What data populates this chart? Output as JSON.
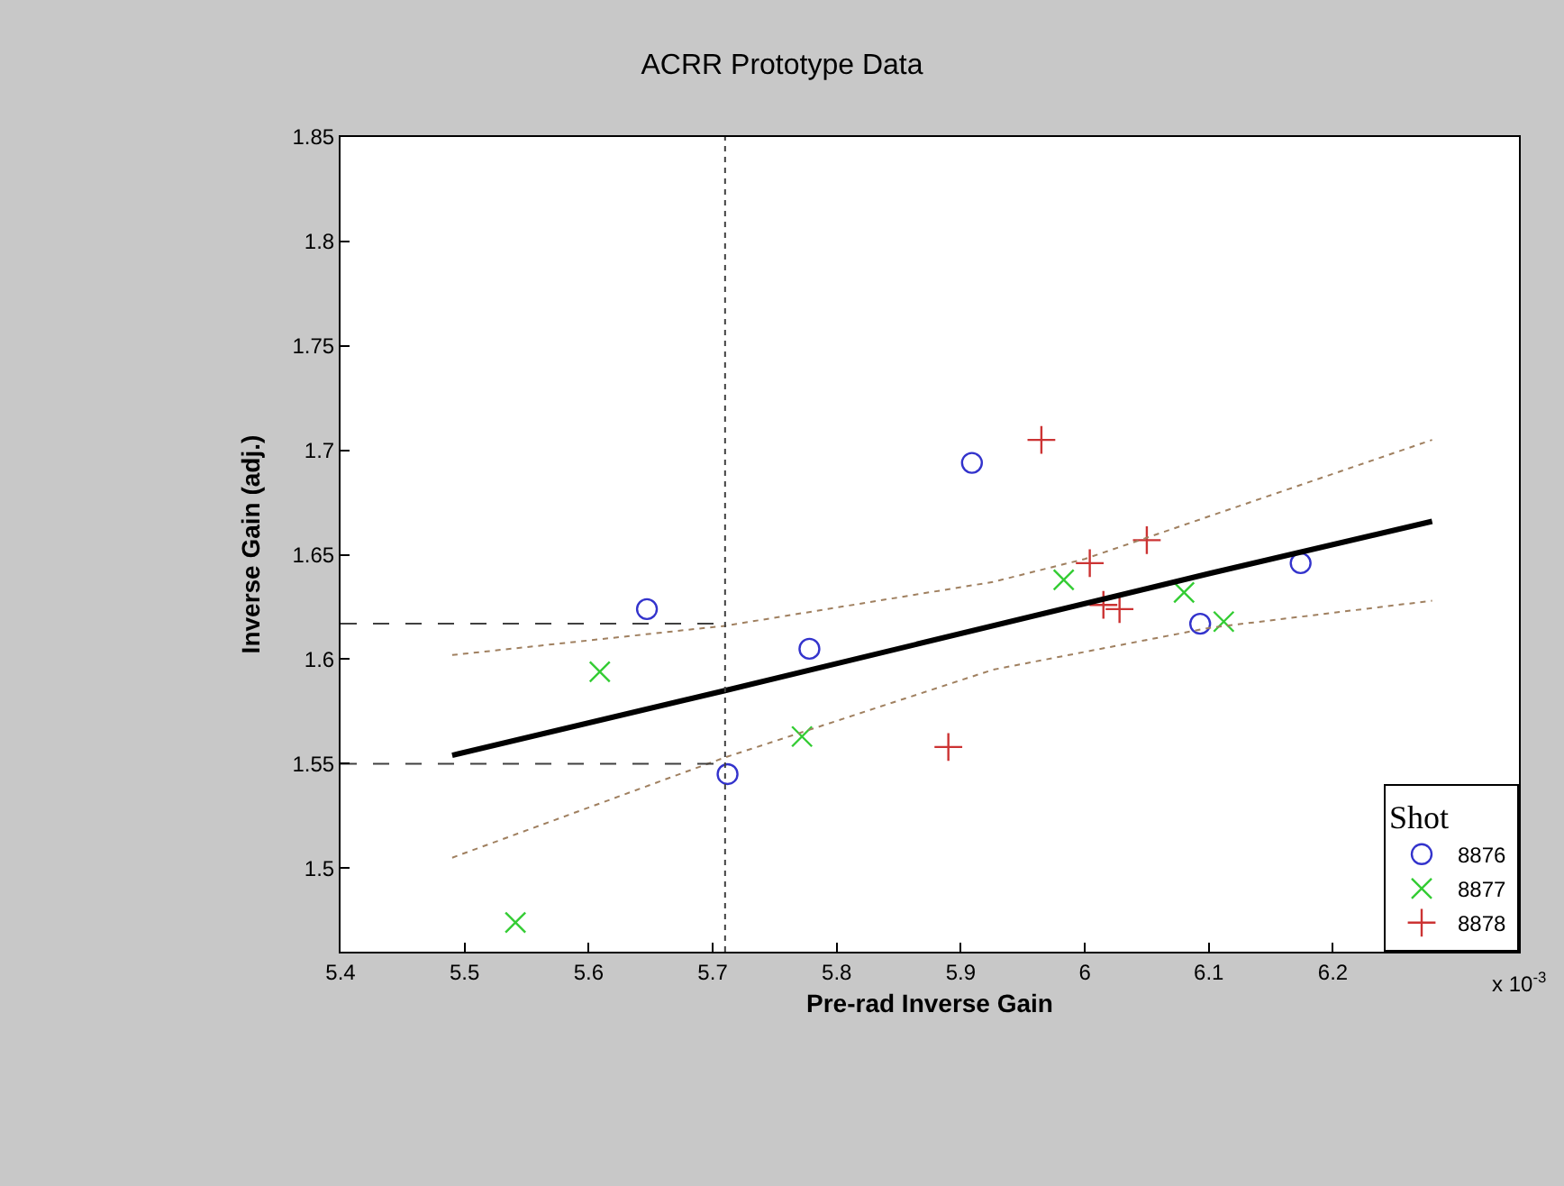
{
  "chart_data": {
    "type": "scatter",
    "title": "ACRR Prototype Data",
    "xlabel": "Pre-rad Inverse Gain",
    "ylabel": "Inverse Gain (adj.)",
    "legend_title": "Shot",
    "legend": "bottom right",
    "xlim": [
      5.4,
      6.35
    ],
    "xticks": [
      5.4,
      5.5,
      5.6,
      5.7,
      5.8,
      5.9,
      6,
      6.1,
      6.2
    ],
    "ylim": [
      1.46,
      1.85
    ],
    "yticks": [
      1.5,
      1.55,
      1.6,
      1.65,
      1.7,
      1.75,
      1.8,
      1.85
    ],
    "annotations": [
      "x 10$^{-3}$"
    ],
    "ref_lines": [
      {
        "axis": "x",
        "value": 5.71,
        "color": "#404040",
        "line_style": "dotted"
      }
    ],
    "series": [
      {
        "name": "8876",
        "marker": "circle",
        "color": "#3333cc",
        "x": [
          5.909,
          5.647,
          5.778,
          5.712,
          6.174,
          6.093
        ],
        "values": [
          1.694,
          1.624,
          1.605,
          1.545,
          1.646,
          1.617
        ]
      },
      {
        "name": "8877",
        "marker": "x",
        "color": "#33cc33",
        "x": [
          5.609,
          5.772,
          5.541,
          5.983,
          6.08,
          6.112
        ],
        "values": [
          1.594,
          1.563,
          1.474,
          1.638,
          1.632,
          1.618
        ]
      },
      {
        "name": "8878",
        "marker": "cross",
        "color": "#cc3333",
        "x": [
          5.89,
          5.965,
          6.004,
          6.05,
          6.015,
          6.028
        ],
        "values": [
          1.558,
          1.705,
          1.646,
          1.657,
          1.626,
          1.624
        ]
      },
      {
        "type": "line",
        "color": "#000000",
        "line_style": "solid",
        "x": [
          5.49,
          5.71,
          6.1,
          6.28
        ],
        "values": [
          1.554,
          1.585,
          1.641,
          1.666
        ]
      },
      {
        "type": "line",
        "color": "#a08060",
        "line_style": "dotted",
        "x": [
          5.49,
          5.71,
          5.926,
          6.0,
          6.28
        ],
        "values": [
          1.602,
          1.616,
          1.637,
          1.648,
          1.705
        ]
      },
      {
        "type": "line",
        "color": "#a08060",
        "line_style": "dotted",
        "x": [
          5.49,
          5.71,
          5.926,
          6.1,
          6.28
        ],
        "values": [
          1.505,
          1.553,
          1.595,
          1.615,
          1.628
        ]
      },
      {
        "type": "line",
        "color": "#404040",
        "line_style": "dashed",
        "x": [
          5.4,
          5.71
        ],
        "values": [
          1.617,
          1.617
        ]
      },
      {
        "type": "line",
        "color": "#404040",
        "line_style": "dashed",
        "x": [
          5.4,
          5.71
        ],
        "values": [
          1.55,
          1.55
        ]
      }
    ]
  }
}
